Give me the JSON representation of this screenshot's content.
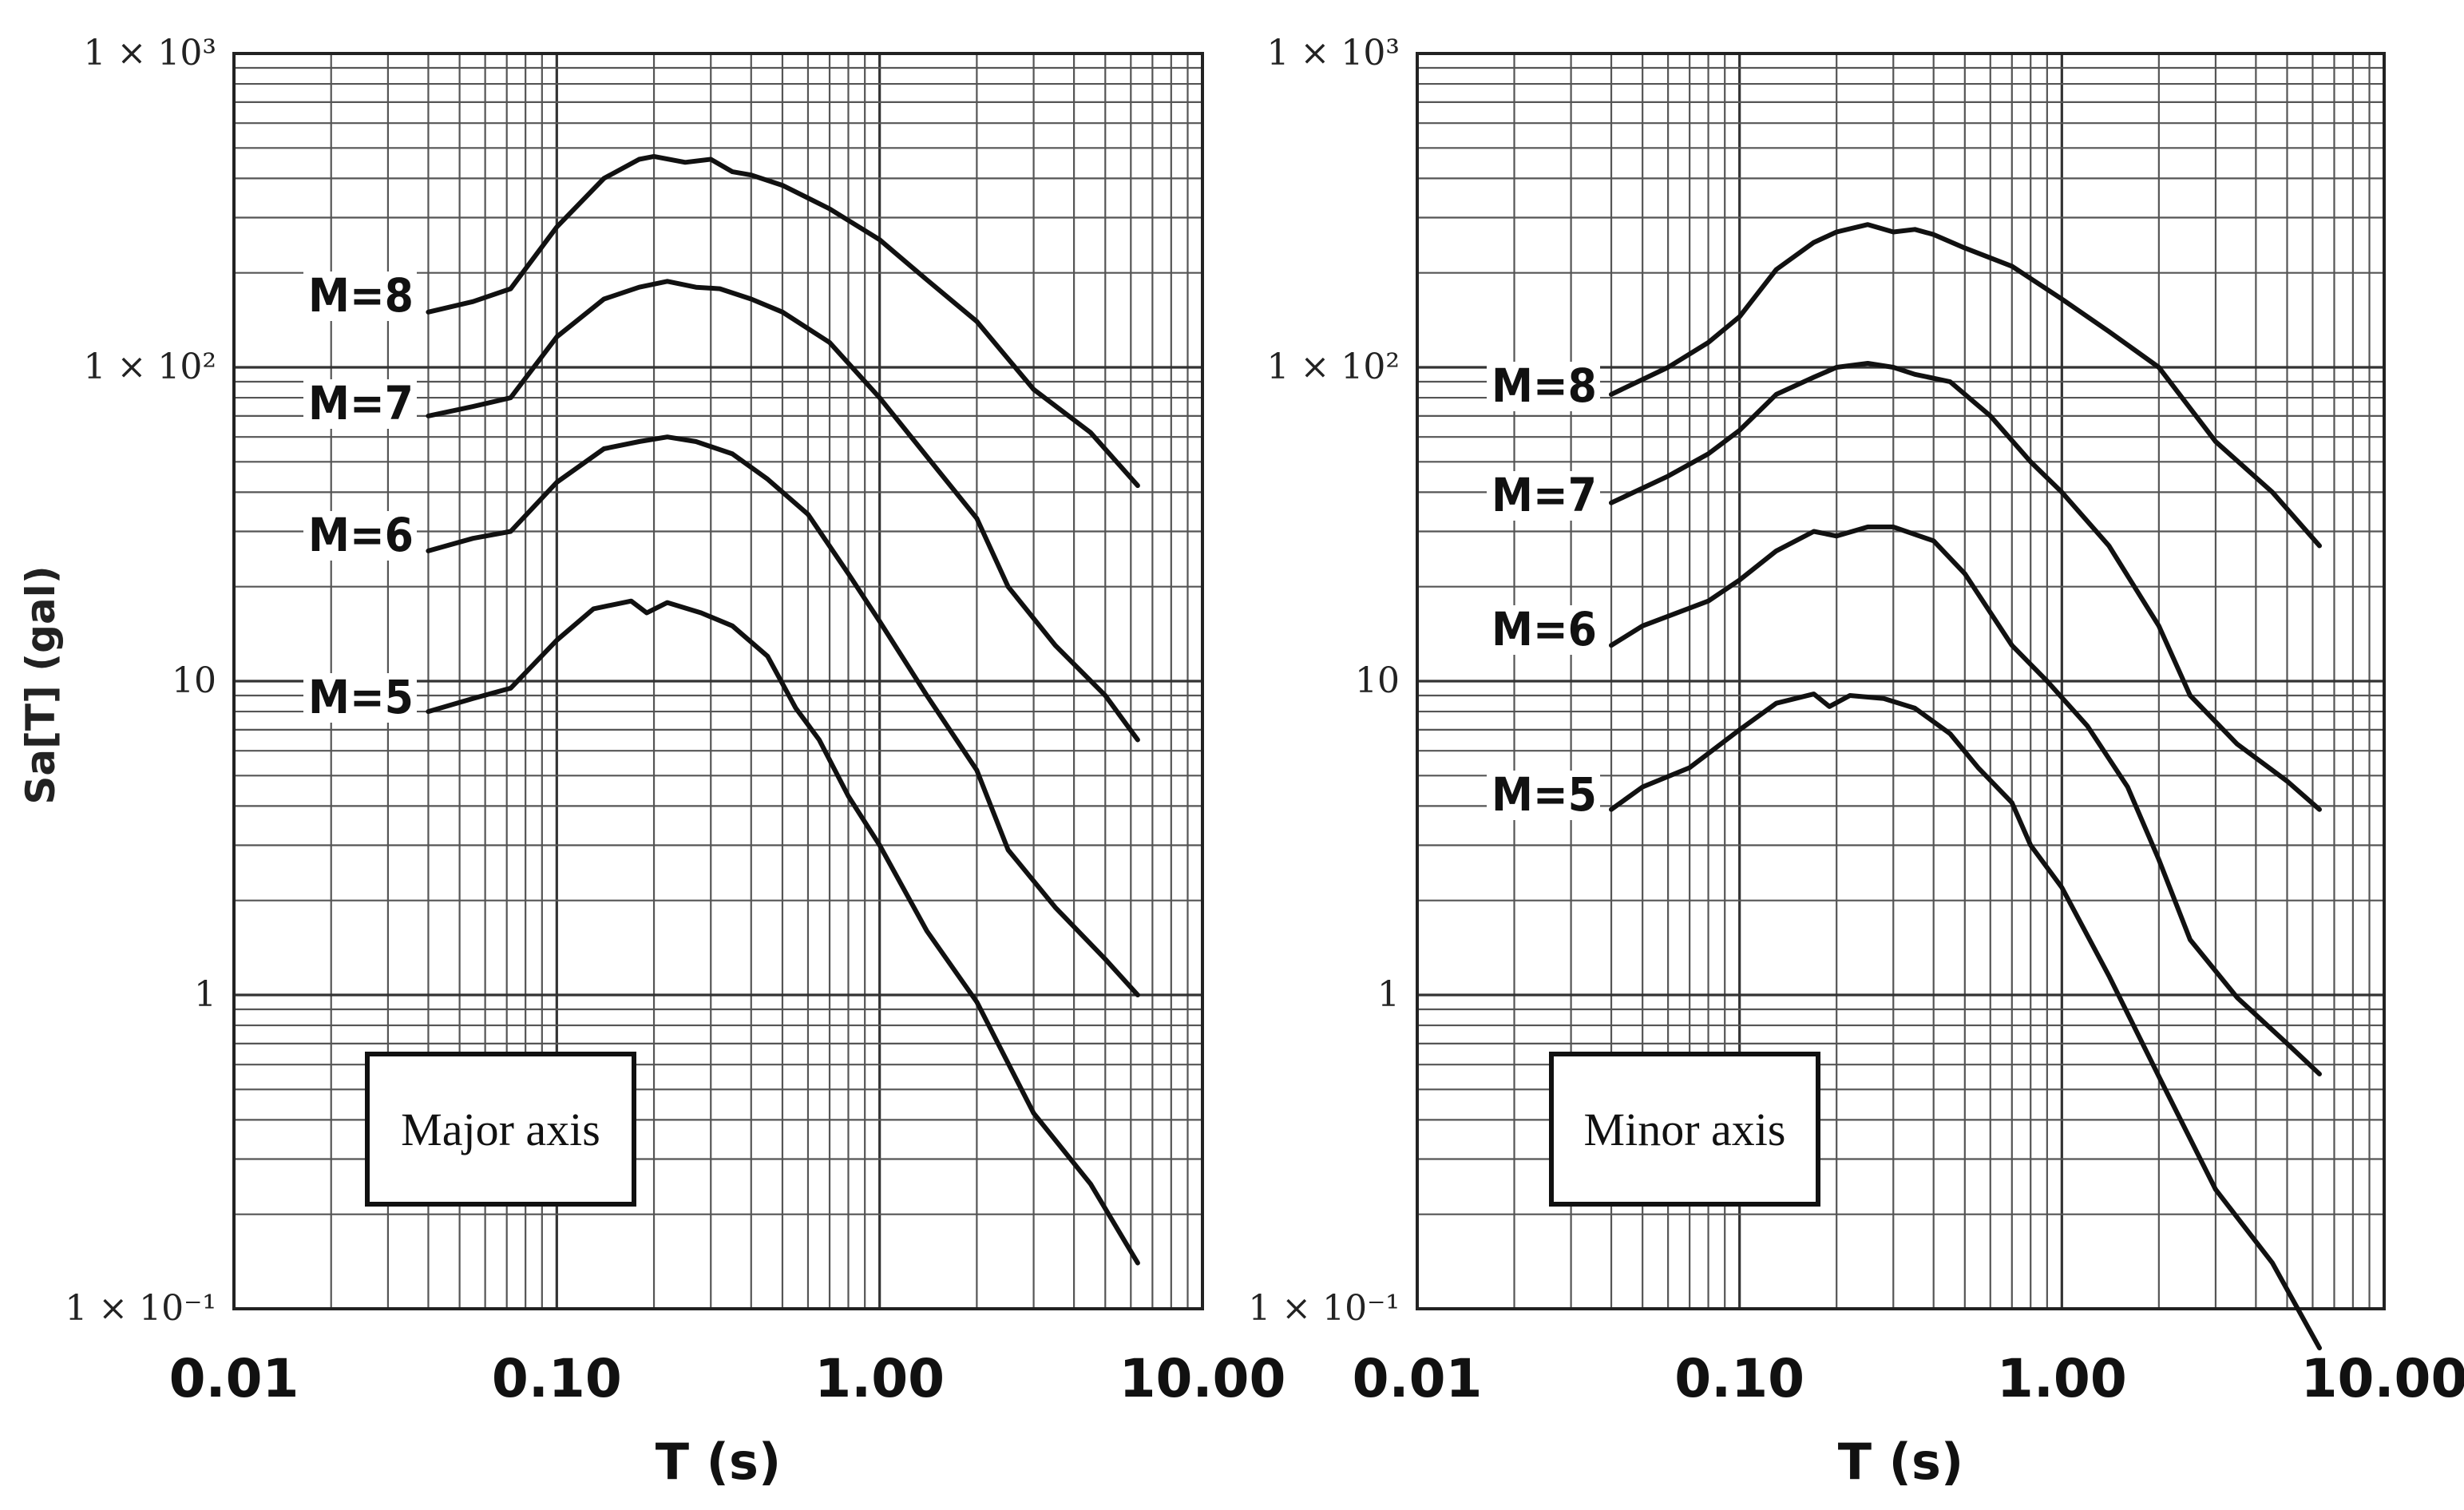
{
  "chart_data": [
    {
      "type": "line",
      "panel_label": "Major axis",
      "xscale": "log",
      "yscale": "log",
      "xlim": [
        0.01,
        10
      ],
      "ylim": [
        0.1,
        1000
      ],
      "xlabel": "T (s)",
      "ylabel": "Sa[T] (gal)",
      "xticks": [
        "0.01",
        "0.10",
        "1.00",
        "10.00"
      ],
      "yticks": [
        {
          "value": 1000,
          "label": "1 × 10³"
        },
        {
          "value": 100,
          "label": "1 × 10²"
        },
        {
          "value": 10,
          "label": "10"
        },
        {
          "value": 1,
          "label": "1"
        },
        {
          "value": 0.1,
          "label": "1 × 10⁻¹"
        }
      ],
      "grid": true,
      "series": [
        {
          "name": "M=8",
          "x": [
            0.04,
            0.055,
            0.072,
            0.1,
            0.14,
            0.18,
            0.2,
            0.25,
            0.3,
            0.35,
            0.4,
            0.5,
            0.7,
            1.0,
            1.4,
            2.0,
            3.0,
            4.5,
            6.3
          ],
          "y": [
            150,
            162,
            178,
            280,
            400,
            460,
            470,
            450,
            460,
            420,
            410,
            380,
            320,
            255,
            190,
            140,
            85,
            62,
            42
          ]
        },
        {
          "name": "M=7",
          "x": [
            0.04,
            0.055,
            0.072,
            0.1,
            0.14,
            0.18,
            0.22,
            0.27,
            0.32,
            0.4,
            0.5,
            0.7,
            1.0,
            1.4,
            2.0,
            2.5,
            3.5,
            5.0,
            6.3
          ],
          "y": [
            70,
            75,
            80,
            125,
            165,
            180,
            188,
            180,
            178,
            165,
            150,
            120,
            80,
            52,
            33,
            20,
            13,
            9,
            6.5
          ]
        },
        {
          "name": "M=6",
          "x": [
            0.04,
            0.055,
            0.072,
            0.1,
            0.14,
            0.18,
            0.22,
            0.27,
            0.35,
            0.45,
            0.6,
            0.8,
            1.0,
            1.4,
            2.0,
            2.5,
            3.5,
            5.0,
            6.3
          ],
          "y": [
            26,
            28.5,
            30,
            43,
            55,
            58,
            60,
            58,
            53,
            44,
            34,
            22,
            15.5,
            9,
            5.2,
            2.9,
            1.9,
            1.3,
            1.0
          ]
        },
        {
          "name": "M=5",
          "x": [
            0.04,
            0.055,
            0.072,
            0.1,
            0.13,
            0.17,
            0.19,
            0.22,
            0.28,
            0.35,
            0.45,
            0.55,
            0.65,
            0.8,
            1.0,
            1.4,
            2.0,
            3.0,
            4.5,
            6.3
          ],
          "y": [
            8,
            8.8,
            9.5,
            13.5,
            17,
            18,
            16.5,
            17.8,
            16.5,
            15,
            12,
            8.2,
            6.5,
            4.3,
            3,
            1.6,
            0.95,
            0.42,
            0.25,
            0.14
          ]
        }
      ],
      "curve_labels": [
        "M=8",
        "M=7",
        "M=6",
        "M=5"
      ]
    },
    {
      "type": "line",
      "panel_label": "Minor axis",
      "xscale": "log",
      "yscale": "log",
      "xlim": [
        0.01,
        10
      ],
      "ylim": [
        0.1,
        1000
      ],
      "xlabel": "T (s)",
      "ylabel": "",
      "xticks": [
        "0.01",
        "0.10",
        "1.00",
        "10.00"
      ],
      "yticks": [
        {
          "value": 1000,
          "label": "1 × 10³"
        },
        {
          "value": 100,
          "label": "1 × 10²"
        },
        {
          "value": 10,
          "label": "10"
        },
        {
          "value": 1,
          "label": "1"
        },
        {
          "value": 0.1,
          "label": "1 × 10⁻¹"
        }
      ],
      "grid": true,
      "series": [
        {
          "name": "M=8",
          "x": [
            0.04,
            0.06,
            0.08,
            0.1,
            0.13,
            0.17,
            0.2,
            0.25,
            0.3,
            0.35,
            0.4,
            0.5,
            0.7,
            1.0,
            1.4,
            2.0,
            3.0,
            4.5,
            6.3
          ],
          "y": [
            82,
            100,
            120,
            145,
            205,
            250,
            270,
            285,
            270,
            275,
            265,
            240,
            210,
            165,
            130,
            100,
            58,
            40,
            27
          ]
        },
        {
          "name": "M=7",
          "x": [
            0.04,
            0.06,
            0.08,
            0.1,
            0.13,
            0.17,
            0.2,
            0.25,
            0.3,
            0.35,
            0.45,
            0.6,
            0.8,
            1.0,
            1.4,
            2.0,
            2.5,
            3.5,
            5.0,
            6.3
          ],
          "y": [
            37,
            45,
            53,
            63,
            82,
            93,
            100,
            103,
            100,
            95,
            90,
            70,
            50,
            40,
            27,
            15,
            9,
            6.3,
            4.8,
            3.9
          ]
        },
        {
          "name": "M=6",
          "x": [
            0.04,
            0.05,
            0.08,
            0.1,
            0.13,
            0.17,
            0.2,
            0.25,
            0.3,
            0.4,
            0.5,
            0.7,
            0.9,
            1.2,
            1.6,
            2.0,
            2.5,
            3.5,
            5.0,
            6.3
          ],
          "y": [
            13,
            15,
            18,
            21,
            26,
            30,
            29,
            31,
            31,
            28,
            22,
            13,
            10,
            7.2,
            4.6,
            2.7,
            1.5,
            0.98,
            0.7,
            0.56
          ]
        },
        {
          "name": "M=5",
          "x": [
            0.04,
            0.05,
            0.07,
            0.1,
            0.13,
            0.17,
            0.19,
            0.22,
            0.28,
            0.35,
            0.45,
            0.55,
            0.7,
            0.8,
            1.0,
            1.4,
            2.0,
            3.0,
            4.5,
            6.3
          ],
          "y": [
            3.9,
            4.6,
            5.3,
            7,
            8.5,
            9.1,
            8.3,
            9,
            8.8,
            8.2,
            6.8,
            5.3,
            4.1,
            3,
            2.2,
            1.15,
            0.55,
            0.24,
            0.14,
            0.075
          ]
        }
      ],
      "curve_labels": [
        "M=8",
        "M=7",
        "M=6",
        "M=5"
      ]
    }
  ]
}
